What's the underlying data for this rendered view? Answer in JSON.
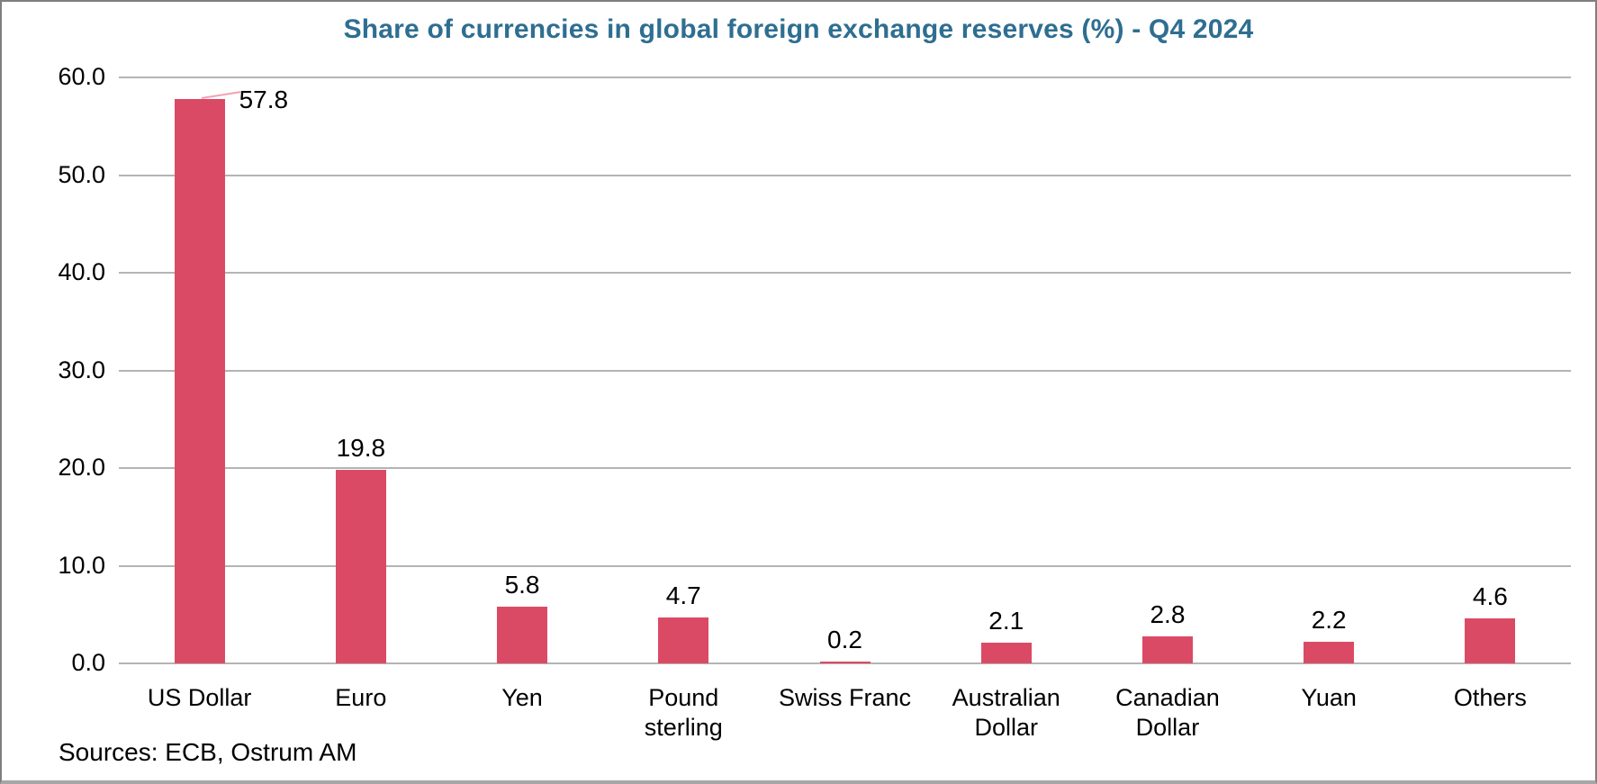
{
  "header": {
    "title": "Share of currencies in global foreign exchange reserves (%) - Q4 2024"
  },
  "footer": {
    "source": "Sources: ECB, Ostrum AM"
  },
  "colors": {
    "bar": "#db4a64",
    "title": "#2e6e91",
    "gridline": "#b4b4b4",
    "leader_line": "#f0a2b0"
  },
  "chart_data": {
    "type": "bar",
    "title": "Share of currencies in global foreign exchange reserves (%) - Q4 2024",
    "categories": [
      "US Dollar",
      "Euro",
      "Yen",
      "Pound sterling",
      "Swiss Franc",
      "Australian Dollar",
      "Canadian Dollar",
      "Yuan",
      "Others"
    ],
    "values": [
      57.8,
      19.8,
      5.8,
      4.7,
      0.2,
      2.1,
      2.8,
      2.2,
      4.6
    ],
    "value_labels": [
      "57.8",
      "19.8",
      "5.8",
      "4.7",
      "0.2",
      "2.1",
      "2.8",
      "2.2",
      "4.6"
    ],
    "xlabel": "",
    "ylabel": "",
    "ylim": [
      0,
      60
    ],
    "ytick_step": 10,
    "yticks": [
      "0.0",
      "10.0",
      "20.0",
      "30.0",
      "40.0",
      "50.0",
      "60.0"
    ],
    "grid": true,
    "legend": false,
    "source": "Sources: ECB, Ostrum AM"
  }
}
